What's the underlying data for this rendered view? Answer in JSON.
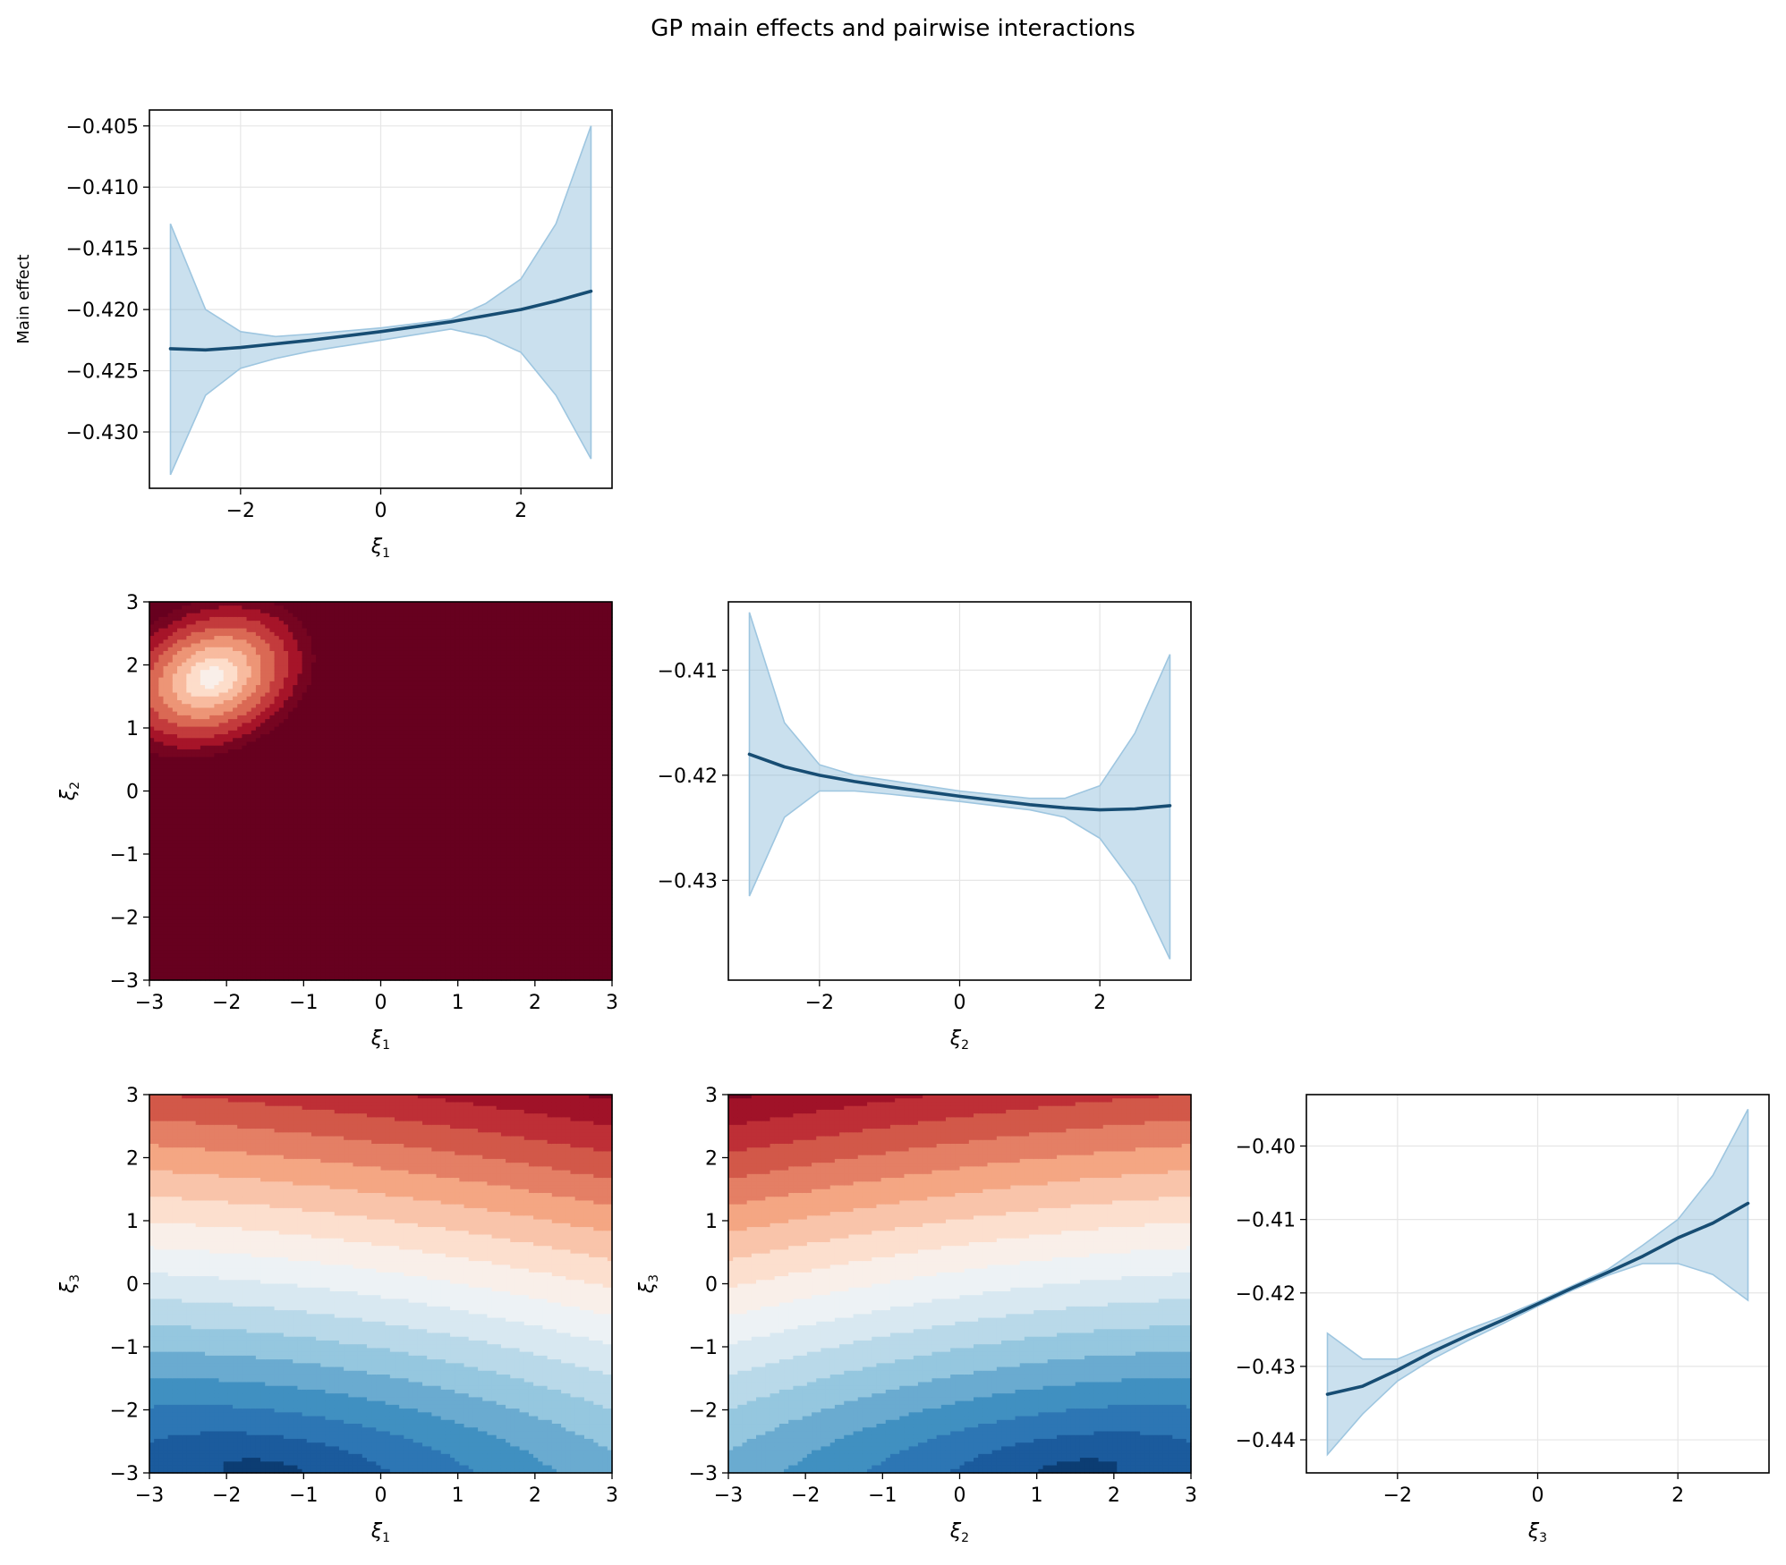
{
  "title": "GP main effects and pairwise interactions",
  "chart_data": [
    {
      "id": "main_xi1",
      "type": "line",
      "title": "",
      "xlabel": "ξ",
      "xlabel_sub": "1",
      "ylabel": "Main effect",
      "xlim": [
        -3.3,
        3.3
      ],
      "ylim": [
        -0.4346,
        -0.4037
      ],
      "xticks": [
        -2,
        0,
        2
      ],
      "xtick_labels": [
        "−2",
        "0",
        "2"
      ],
      "yticks": [
        -0.405,
        -0.41,
        -0.415,
        -0.42,
        -0.425,
        -0.43
      ],
      "ytick_labels": [
        "−0.405",
        "−0.410",
        "−0.415",
        "−0.420",
        "−0.425",
        "−0.430"
      ],
      "grid": true,
      "series": [
        {
          "x": [
            -3,
            -2.5,
            -2,
            -1.5,
            -1,
            0,
            1,
            1.5,
            2,
            2.5,
            3
          ],
          "mean": [
            -0.4232,
            -0.4233,
            -0.4231,
            -0.4228,
            -0.4225,
            -0.4218,
            -0.421,
            -0.4205,
            -0.42,
            -0.4193,
            -0.4185
          ],
          "upper": [
            -0.413,
            -0.42,
            -0.4218,
            -0.4222,
            -0.422,
            -0.4215,
            -0.4208,
            -0.4195,
            -0.4175,
            -0.413,
            -0.405
          ],
          "lower": [
            -0.4335,
            -0.427,
            -0.4248,
            -0.424,
            -0.4234,
            -0.4225,
            -0.4216,
            -0.4222,
            -0.4235,
            -0.427,
            -0.4322
          ]
        }
      ]
    },
    {
      "id": "main_xi2",
      "type": "line",
      "title": "",
      "xlabel": "ξ",
      "xlabel_sub": "2",
      "ylabel": "",
      "xlim": [
        -3.3,
        3.3
      ],
      "ylim": [
        -0.4395,
        -0.4035
      ],
      "xticks": [
        -2,
        0,
        2
      ],
      "xtick_labels": [
        "−2",
        "0",
        "2"
      ],
      "yticks": [
        -0.41,
        -0.42,
        -0.43
      ],
      "ytick_labels": [
        "−0.41",
        "−0.42",
        "−0.43"
      ],
      "grid": true,
      "series": [
        {
          "x": [
            -3,
            -2.5,
            -2,
            -1.5,
            -1,
            0,
            1,
            1.5,
            2,
            2.5,
            3
          ],
          "mean": [
            -0.418,
            -0.4192,
            -0.42,
            -0.4206,
            -0.4211,
            -0.422,
            -0.4228,
            -0.4231,
            -0.4233,
            -0.4232,
            -0.4229
          ],
          "upper": [
            -0.4045,
            -0.415,
            -0.419,
            -0.42,
            -0.4205,
            -0.4215,
            -0.4222,
            -0.4222,
            -0.421,
            -0.416,
            -0.4085
          ],
          "lower": [
            -0.4315,
            -0.424,
            -0.4215,
            -0.4215,
            -0.4218,
            -0.4225,
            -0.4233,
            -0.424,
            -0.426,
            -0.4305,
            -0.4375
          ]
        }
      ]
    },
    {
      "id": "main_xi3",
      "type": "line",
      "title": "",
      "xlabel": "ξ",
      "xlabel_sub": "3",
      "ylabel": "",
      "xlim": [
        -3.3,
        3.3
      ],
      "ylim": [
        -0.4445,
        -0.393
      ],
      "xticks": [
        -2,
        0,
        2
      ],
      "xtick_labels": [
        "−2",
        "0",
        "2"
      ],
      "yticks": [
        -0.4,
        -0.41,
        -0.42,
        -0.43,
        -0.44
      ],
      "ytick_labels": [
        "−0.40",
        "−0.41",
        "−0.42",
        "−0.43",
        "−0.44"
      ],
      "grid": true,
      "series": [
        {
          "x": [
            -3,
            -2.5,
            -2,
            -1.5,
            -1,
            -0.5,
            0,
            0.5,
            1,
            1.5,
            2,
            2.5,
            3
          ],
          "mean": [
            -0.4338,
            -0.4327,
            -0.4305,
            -0.428,
            -0.4258,
            -0.4237,
            -0.4215,
            -0.4193,
            -0.4172,
            -0.415,
            -0.4125,
            -0.4105,
            -0.4078
          ],
          "upper": [
            -0.4255,
            -0.429,
            -0.429,
            -0.427,
            -0.425,
            -0.4232,
            -0.4212,
            -0.419,
            -0.4168,
            -0.4135,
            -0.41,
            -0.404,
            -0.395
          ],
          "lower": [
            -0.442,
            -0.4365,
            -0.432,
            -0.429,
            -0.4265,
            -0.4242,
            -0.4218,
            -0.4196,
            -0.4176,
            -0.416,
            -0.416,
            -0.4175,
            -0.421
          ]
        }
      ]
    },
    {
      "id": "int_xi1_xi2",
      "type": "heatmap",
      "title": "",
      "xlabel": "ξ",
      "xlabel_sub": "1",
      "ylabel": "ξ",
      "ylabel_sub": "2",
      "xlim": [
        -3,
        3
      ],
      "ylim": [
        -3,
        3
      ],
      "xticks": [
        -3,
        -2,
        -1,
        0,
        1,
        2,
        3
      ],
      "xtick_labels": [
        "−3",
        "−2",
        "−1",
        "0",
        "1",
        "2",
        "3"
      ],
      "yticks": [
        -3,
        -2,
        -1,
        0,
        1,
        2,
        3
      ],
      "ytick_labels": [
        "−3",
        "−2",
        "−1",
        "0",
        "1",
        "2",
        "3"
      ],
      "colormap": "RdBu_r (blue low, red high)",
      "surface": {
        "center": [
          -2.2,
          1.8
        ],
        "scale": [
          0.62,
          1.0
        ],
        "rotation_deg": 40,
        "levels": 14,
        "vmin": -1,
        "vmax": 1
      }
    },
    {
      "id": "int_xi1_xi3",
      "type": "heatmap",
      "title": "",
      "xlabel": "ξ",
      "xlabel_sub": "1",
      "ylabel": "ξ",
      "ylabel_sub": "3",
      "xlim": [
        -3,
        3
      ],
      "ylim": [
        -3,
        3
      ],
      "xticks": [
        -3,
        -2,
        -1,
        0,
        1,
        2,
        3
      ],
      "xtick_labels": [
        "−3",
        "−2",
        "−1",
        "0",
        "1",
        "2",
        "3"
      ],
      "yticks": [
        -3,
        -2,
        -1,
        0,
        1,
        2,
        3
      ],
      "ytick_labels": [
        "−3",
        "−2",
        "−1",
        "0",
        "1",
        "2",
        "3"
      ],
      "colormap": "RdBu_r (blue low, red high)",
      "surface": {
        "center": [
          -1.5,
          -3.0
        ],
        "scale": [
          0.12,
          1.0
        ],
        "rotation_deg": -8,
        "levels": 16,
        "vmin": 0.2,
        "vmax": 6.6
      }
    },
    {
      "id": "int_xi2_xi3",
      "type": "heatmap",
      "title": "",
      "xlabel": "ξ",
      "xlabel_sub": "2",
      "ylabel": "ξ",
      "ylabel_sub": "3",
      "xlim": [
        -3,
        3
      ],
      "ylim": [
        -3,
        3
      ],
      "xticks": [
        -3,
        -2,
        -1,
        0,
        1,
        2,
        3
      ],
      "xtick_labels": [
        "−3",
        "−2",
        "−1",
        "0",
        "1",
        "2",
        "3"
      ],
      "yticks": [
        -3,
        -2,
        -1,
        0,
        1,
        2,
        3
      ],
      "ytick_labels": [
        "−3",
        "−2",
        "−1",
        "0",
        "1",
        "2",
        "3"
      ],
      "colormap": "RdBu_r (blue low, red high)",
      "surface": {
        "center": [
          1.5,
          -3.0
        ],
        "scale": [
          0.12,
          1.0
        ],
        "rotation_deg": 8,
        "levels": 16,
        "vmin": 0.2,
        "vmax": 6.6
      }
    }
  ]
}
